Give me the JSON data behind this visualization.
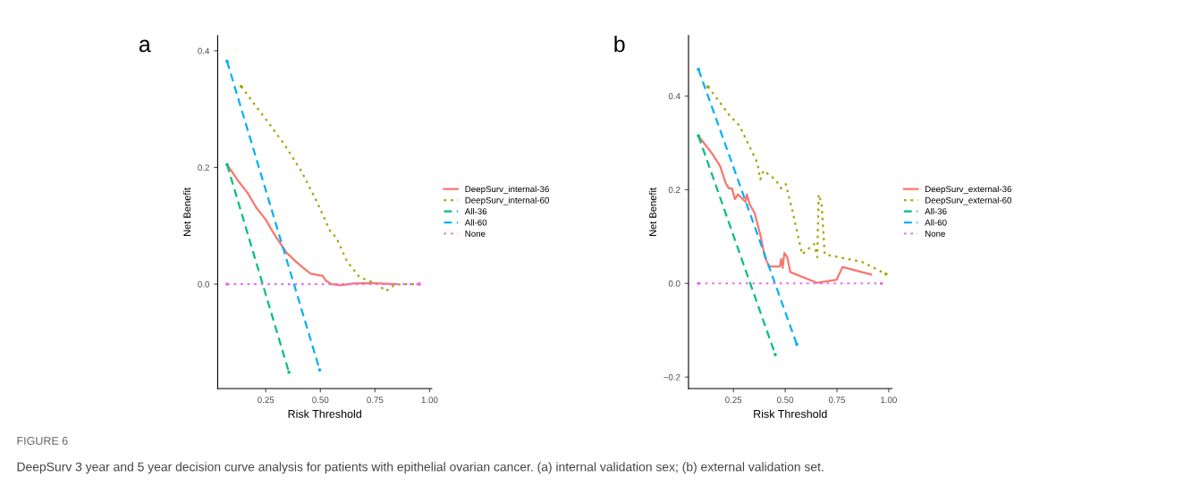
{
  "chart_data": [
    {
      "type": "line",
      "title": "a",
      "xlabel": "Risk Threshold",
      "ylabel": "Net Benefit",
      "xlim": [
        0.03,
        1.01
      ],
      "ylim": [
        -0.179,
        0.426
      ],
      "xticks": [
        {
          "value": 0.25,
          "label": "0.25"
        },
        {
          "value": 0.5,
          "label": "0.50"
        },
        {
          "value": 0.75,
          "label": "0.75"
        },
        {
          "value": 1.0,
          "label": "1.00"
        }
      ],
      "yticks": [
        {
          "value": 0.0,
          "label": "0.0"
        },
        {
          "value": 0.2,
          "label": "0.2"
        },
        {
          "value": 0.4,
          "label": "0.4"
        }
      ],
      "grid": false,
      "legend": "right",
      "marker": "none",
      "annotations": [
        "FIGURE 6",
        "DeepSurv 3 year and 5 year decision curve analysis for patients with epithelial ovarian cancer. (a) internal validation sex; (b) external validation set."
      ],
      "series": [
        {
          "name": "DeepSurv_internal-36",
          "color": "#f8766d",
          "line_style": "solid",
          "x": [
            0.073,
            0.124,
            0.166,
            0.207,
            0.249,
            0.29,
            0.345,
            0.387,
            0.428,
            0.456,
            0.511,
            0.525,
            0.552,
            0.594,
            0.649,
            0.732,
            0.843
          ],
          "values": [
            0.205,
            0.177,
            0.157,
            0.131,
            0.111,
            0.085,
            0.054,
            0.039,
            0.026,
            0.018,
            0.014,
            0.006,
            0.0,
            -0.002,
            0.001,
            0.002,
            0.0
          ]
        },
        {
          "name": "DeepSurv_internal-60",
          "color": "#a3a500",
          "line_style": "dotted",
          "x": [
            0.138,
            0.193,
            0.276,
            0.345,
            0.414,
            0.483,
            0.546,
            0.573,
            0.622,
            0.677,
            0.718,
            0.753,
            0.801,
            0.836,
            0.87,
            0.953
          ],
          "values": [
            0.339,
            0.311,
            0.27,
            0.234,
            0.193,
            0.142,
            0.09,
            0.08,
            0.039,
            0.013,
            0.006,
            0.002,
            -0.012,
            -0.002,
            0.0,
            0.0
          ]
        },
        {
          "name": "All-36",
          "color": "#00bf7d",
          "line_style": "dashed",
          "x": [
            0.073,
            0.356
          ],
          "values": [
            0.205,
            -0.151
          ]
        },
        {
          "name": "All-60",
          "color": "#00b0f6",
          "line_style": "dashed",
          "x": [
            0.073,
            0.497
          ],
          "values": [
            0.382,
            -0.147
          ]
        },
        {
          "name": "None",
          "color": "#e76bf3",
          "line_style": "dotted",
          "x": [
            0.073,
            0.953
          ],
          "values": [
            0.0,
            0.0
          ]
        }
      ]
    },
    {
      "type": "line",
      "title": "b",
      "xlabel": "Risk Threshold",
      "ylabel": "Net Benefit",
      "xlim": [
        0.033,
        1.016
      ],
      "ylim": [
        -0.2246,
        0.529
      ],
      "xticks": [
        {
          "value": 0.25,
          "label": "0.25"
        },
        {
          "value": 0.5,
          "label": "0.50"
        },
        {
          "value": 0.75,
          "label": "0.75"
        },
        {
          "value": 1.0,
          "label": "1.00"
        }
      ],
      "yticks": [
        {
          "value": -0.2,
          "label": "−0.2"
        },
        {
          "value": 0.0,
          "label": "0.0"
        },
        {
          "value": 0.2,
          "label": "0.2"
        },
        {
          "value": 0.4,
          "label": "0.4"
        }
      ],
      "grid": false,
      "legend": "right",
      "marker": "none",
      "series": [
        {
          "name": "DeepSurv_external-36",
          "color": "#f8766d",
          "line_style": "solid",
          "x": [
            0.081,
            0.149,
            0.185,
            0.214,
            0.228,
            0.243,
            0.257,
            0.272,
            0.308,
            0.315,
            0.329,
            0.351,
            0.38,
            0.402,
            0.423,
            0.474,
            0.481,
            0.488,
            0.496,
            0.51,
            0.525,
            0.655,
            0.749,
            0.777,
            0.915
          ],
          "values": [
            0.315,
            0.276,
            0.251,
            0.213,
            0.203,
            0.203,
            0.18,
            0.19,
            0.174,
            0.19,
            0.168,
            0.152,
            0.104,
            0.056,
            0.036,
            0.036,
            0.052,
            0.033,
            0.065,
            0.056,
            0.024,
            0.001,
            0.008,
            0.035,
            0.019
          ]
        },
        {
          "name": "DeepSurv_external-60",
          "color": "#a3a500",
          "line_style": "dotted",
          "x": [
            0.127,
            0.192,
            0.228,
            0.279,
            0.366,
            0.38,
            0.395,
            0.452,
            0.481,
            0.503,
            0.532,
            0.582,
            0.64,
            0.655,
            0.662,
            0.676,
            0.691,
            0.871,
            0.987
          ],
          "values": [
            0.42,
            0.382,
            0.36,
            0.337,
            0.257,
            0.222,
            0.241,
            0.222,
            0.203,
            0.212,
            0.161,
            0.062,
            0.084,
            0.056,
            0.19,
            0.171,
            0.062,
            0.046,
            0.02
          ]
        },
        {
          "name": "All-36",
          "color": "#00bf7d",
          "line_style": "dashed",
          "x": [
            0.081,
            0.452
          ],
          "values": [
            0.315,
            -0.152
          ]
        },
        {
          "name": "All-60",
          "color": "#00b0f6",
          "line_style": "dashed",
          "x": [
            0.081,
            0.556
          ],
          "values": [
            0.457,
            -0.13
          ]
        },
        {
          "name": "None",
          "color": "#e76bf3",
          "line_style": "dotted",
          "x": [
            0.081,
            0.965
          ],
          "values": [
            0.0,
            0.0
          ]
        }
      ]
    }
  ]
}
